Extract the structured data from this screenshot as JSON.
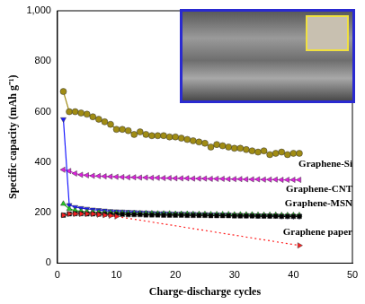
{
  "chart_data": {
    "type": "line",
    "x_label": "Charge-discharge cycles",
    "y_label": "Specific capacity (mAh g⁻¹)",
    "x": [
      1,
      2,
      3,
      4,
      5,
      6,
      7,
      8,
      9,
      10,
      11,
      12,
      13,
      14,
      15,
      16,
      17,
      18,
      19,
      20,
      21,
      22,
      23,
      24,
      25,
      26,
      27,
      28,
      29,
      30,
      31,
      32,
      33,
      34,
      35,
      36,
      37,
      38,
      39,
      40,
      41
    ],
    "series": [
      {
        "name": "Graphene paper",
        "color": "#ff2020",
        "marker": "triangle-right",
        "line_style": "dotted",
        "values": [
          190,
          195,
          195,
          195,
          195,
          195,
          192,
          190,
          188,
          185,
          null,
          null,
          null,
          null,
          null,
          null,
          null,
          null,
          null,
          null,
          null,
          null,
          null,
          null,
          null,
          null,
          null,
          null,
          null,
          null,
          null,
          null,
          null,
          null,
          null,
          null,
          null,
          null,
          null,
          null,
          70
        ]
      },
      {
        "color": "#000000",
        "marker": "square",
        "line_style": "solid",
        "values": [
          190,
          195,
          196,
          196,
          195,
          195,
          194,
          194,
          193,
          193,
          193,
          192,
          192,
          192,
          191,
          191,
          191,
          190,
          190,
          190,
          190,
          189,
          189,
          189,
          189,
          188,
          188,
          188,
          188,
          187,
          187,
          187,
          187,
          186,
          186,
          186,
          186,
          185,
          185,
          185,
          185
        ]
      },
      {
        "color": "#22cc22",
        "marker": "triangle",
        "line_style": "solid",
        "values": [
          235,
          215,
          208,
          205,
          203,
          202,
          201,
          200,
          200,
          199,
          199,
          198,
          198,
          197,
          197,
          197,
          196,
          196,
          196,
          195,
          195,
          195,
          194,
          194,
          194,
          193,
          193,
          193,
          193,
          192,
          192,
          192,
          192,
          191,
          191,
          191,
          191,
          190,
          190,
          190,
          190
        ]
      },
      {
        "name": "Graphene-MSN",
        "color": "#1a1aff",
        "marker": "triangle-down",
        "line_style": "solid",
        "values": [
          570,
          230,
          222,
          218,
          215,
          212,
          210,
          208,
          206,
          205,
          204,
          203,
          202,
          201,
          200,
          199,
          198,
          198,
          197,
          196,
          196,
          195,
          195,
          194,
          194,
          193,
          193,
          192,
          192,
          191,
          191,
          190,
          190,
          189,
          189,
          188,
          188,
          187,
          187,
          186,
          186
        ]
      },
      {
        "name": "Graphene-CNT",
        "color": "#e020e0",
        "marker": "triangle-left",
        "line_style": "solid",
        "values": [
          370,
          365,
          355,
          350,
          348,
          346,
          345,
          344,
          343,
          342,
          341,
          340,
          340,
          339,
          339,
          338,
          338,
          337,
          337,
          336,
          336,
          336,
          335,
          335,
          335,
          334,
          334,
          334,
          333,
          333,
          333,
          332,
          332,
          332,
          331,
          331,
          331,
          330,
          330,
          330,
          330
        ]
      },
      {
        "name": "Graphene-Si",
        "color": "#a08c14",
        "marker": "circle",
        "line_style": "solid",
        "values": [
          680,
          600,
          600,
          595,
          590,
          580,
          570,
          560,
          550,
          530,
          530,
          525,
          510,
          520,
          510,
          505,
          505,
          505,
          500,
          500,
          495,
          490,
          485,
          480,
          475,
          460,
          470,
          465,
          460,
          455,
          455,
          450,
          445,
          440,
          445,
          430,
          435,
          440,
          430,
          435,
          435
        ]
      }
    ],
    "annotations": [
      {
        "text": "Graphene-Si",
        "x": 50,
        "y": 390
      },
      {
        "text": "Graphene-CNT",
        "x": 50,
        "y": 292
      },
      {
        "text": "Graphene-MSN",
        "x": 50,
        "y": 235
      },
      {
        "text": "Graphene paper",
        "x": 50,
        "y": 120
      }
    ],
    "xlim": [
      0,
      50
    ],
    "xticks": [
      0,
      10,
      20,
      30,
      40,
      50
    ],
    "ylim": [
      0,
      1000
    ],
    "yticks": [
      0,
      200,
      400,
      600,
      800,
      1000
    ],
    "grid": false
  }
}
